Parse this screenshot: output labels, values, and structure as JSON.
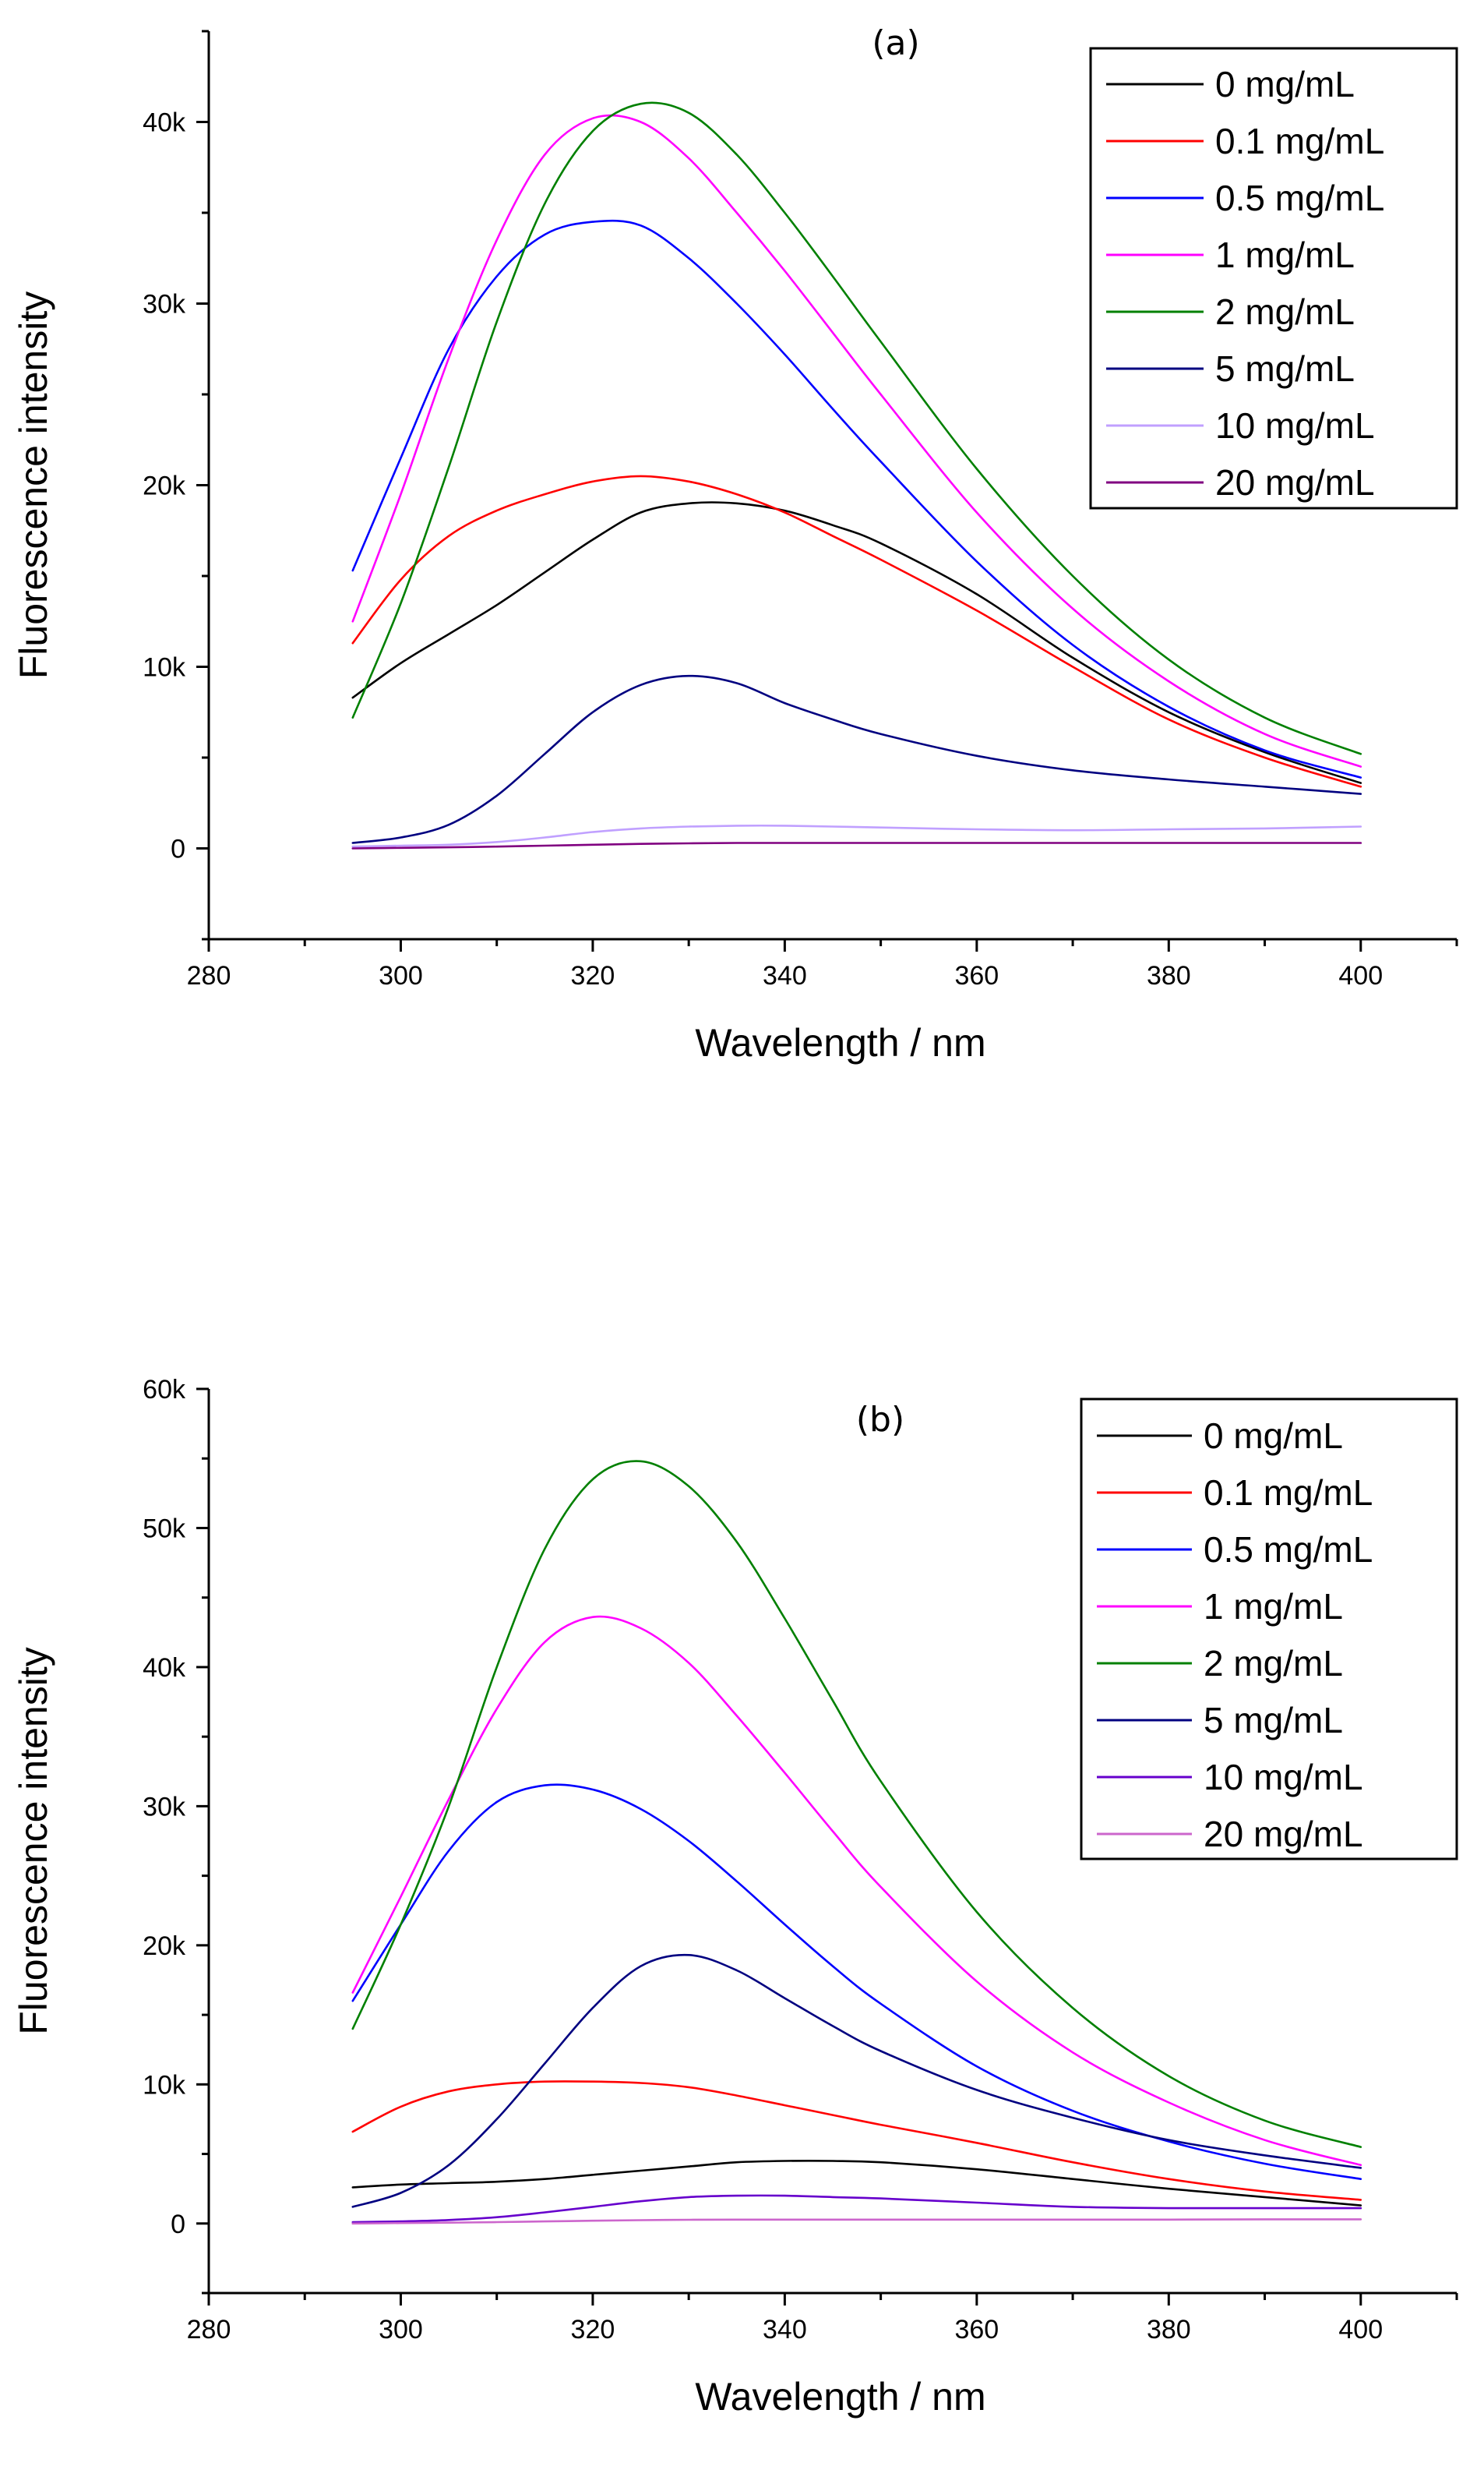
{
  "chart_data": [
    {
      "type": "line",
      "panel_label": "(a)",
      "xlabel": "Wavelength / nm",
      "ylabel": "Fluorescence intensity",
      "xlim": [
        280,
        410
      ],
      "ylim": [
        -5000,
        45000
      ],
      "xticks": [
        280,
        300,
        320,
        340,
        360,
        380,
        400
      ],
      "xtick_labels": [
        "280",
        "300",
        "320",
        "340",
        "360",
        "380",
        "400"
      ],
      "yticks": [
        0,
        10000,
        20000,
        30000,
        40000
      ],
      "ytick_labels": [
        "0",
        "10k",
        "20k",
        "30k",
        "40k"
      ],
      "legend_position": "top-right",
      "x": [
        295,
        300,
        305,
        310,
        315,
        320,
        325,
        330,
        335,
        340,
        345,
        350,
        360,
        370,
        380,
        390,
        400
      ],
      "series": [
        {
          "name": "0 mg/mL",
          "color": "#000000",
          "values": [
            8300,
            10200,
            11800,
            13400,
            15200,
            17000,
            18500,
            19000,
            19000,
            18600,
            17800,
            16800,
            14000,
            10500,
            7500,
            5300,
            3600
          ]
        },
        {
          "name": "0.1 mg/mL",
          "color": "#ff0000",
          "values": [
            11300,
            14800,
            17200,
            18600,
            19500,
            20200,
            20500,
            20200,
            19500,
            18500,
            17200,
            15900,
            13100,
            10000,
            7100,
            5000,
            3400
          ]
        },
        {
          "name": "0.5 mg/mL",
          "color": "#0000ff",
          "values": [
            15300,
            21500,
            27500,
            31500,
            33800,
            34500,
            34300,
            32500,
            30000,
            27200,
            24200,
            21300,
            15800,
            11200,
            7800,
            5400,
            3900
          ]
        },
        {
          "name": "1 mg/mL",
          "color": "#ff00ff",
          "values": [
            12500,
            19500,
            27000,
            33500,
            38200,
            40200,
            40000,
            38000,
            35000,
            31800,
            28400,
            25000,
            18500,
            13200,
            9200,
            6300,
            4500
          ]
        },
        {
          "name": "2 mg/mL",
          "color": "#008000",
          "values": [
            7200,
            13500,
            21000,
            29000,
            35500,
            39500,
            41000,
            40500,
            38200,
            35000,
            31500,
            27900,
            20900,
            15000,
            10400,
            7200,
            5200
          ]
        },
        {
          "name": "5 mg/mL",
          "color": "#000080",
          "values": [
            300,
            600,
            1300,
            2900,
            5200,
            7500,
            9000,
            9500,
            9100,
            8000,
            7100,
            6300,
            5100,
            4300,
            3800,
            3400,
            3000
          ]
        },
        {
          "name": "10 mg/mL",
          "color": "#c0a0ff",
          "values": [
            100,
            150,
            200,
            350,
            600,
            900,
            1100,
            1200,
            1250,
            1250,
            1200,
            1150,
            1050,
            1000,
            1050,
            1100,
            1200
          ]
        },
        {
          "name": "20 mg/mL",
          "color": "#800080",
          "values": [
            0,
            30,
            60,
            100,
            150,
            200,
            250,
            280,
            300,
            300,
            300,
            300,
            300,
            300,
            300,
            300,
            300
          ]
        }
      ]
    },
    {
      "type": "line",
      "panel_label": "(b)",
      "xlabel": "Wavelength / nm",
      "ylabel": "Fluorescence intensity",
      "xlim": [
        280,
        410
      ],
      "ylim": [
        -5000,
        60000
      ],
      "xticks": [
        280,
        300,
        320,
        340,
        360,
        380,
        400
      ],
      "xtick_labels": [
        "280",
        "300",
        "320",
        "340",
        "360",
        "380",
        "400"
      ],
      "yticks": [
        0,
        10000,
        20000,
        30000,
        40000,
        50000,
        60000
      ],
      "ytick_labels": [
        "0",
        "10k",
        "20k",
        "30k",
        "40k",
        "50k",
        "60k"
      ],
      "legend_position": "top-right",
      "x": [
        295,
        300,
        305,
        310,
        315,
        320,
        325,
        330,
        335,
        340,
        345,
        350,
        360,
        370,
        380,
        390,
        400
      ],
      "series": [
        {
          "name": "0 mg/mL",
          "color": "#000000",
          "values": [
            2600,
            2800,
            2900,
            3000,
            3200,
            3500,
            3800,
            4100,
            4400,
            4500,
            4500,
            4400,
            3900,
            3200,
            2500,
            1900,
            1300
          ]
        },
        {
          "name": "0.1 mg/mL",
          "color": "#ff0000",
          "values": [
            6600,
            8400,
            9500,
            10000,
            10200,
            10200,
            10100,
            9800,
            9200,
            8500,
            7800,
            7100,
            5800,
            4400,
            3200,
            2300,
            1700
          ]
        },
        {
          "name": "0.5 mg/mL",
          "color": "#0000ff",
          "values": [
            16000,
            21500,
            26800,
            30300,
            31500,
            31200,
            29800,
            27500,
            24600,
            21500,
            18500,
            15800,
            11300,
            8100,
            5900,
            4300,
            3200
          ]
        },
        {
          "name": "1 mg/mL",
          "color": "#ff00ff",
          "values": [
            16600,
            23500,
            30500,
            37000,
            41800,
            43600,
            42800,
            40300,
            36500,
            32400,
            28200,
            24200,
            17400,
            12300,
            8700,
            6000,
            4200
          ]
        },
        {
          "name": "2 mg/mL",
          "color": "#008000",
          "values": [
            14000,
            21500,
            30000,
            40000,
            48500,
            53500,
            54800,
            53000,
            49000,
            43500,
            37600,
            31800,
            22400,
            15500,
            10600,
            7400,
            5500
          ]
        },
        {
          "name": "5 mg/mL",
          "color": "#000080",
          "values": [
            1200,
            2200,
            4200,
            7500,
            11500,
            15500,
            18500,
            19300,
            18200,
            16200,
            14200,
            12400,
            9600,
            7600,
            6000,
            4900,
            4000
          ]
        },
        {
          "name": "10 mg/mL",
          "color": "#6600cc",
          "values": [
            100,
            150,
            250,
            450,
            800,
            1200,
            1600,
            1900,
            2000,
            2000,
            1900,
            1800,
            1500,
            1200,
            1100,
            1100,
            1100
          ]
        },
        {
          "name": "20 mg/mL",
          "color": "#cc66cc",
          "values": [
            0,
            30,
            60,
            100,
            150,
            200,
            240,
            270,
            280,
            280,
            280,
            280,
            280,
            280,
            280,
            300,
            300
          ]
        }
      ]
    }
  ]
}
